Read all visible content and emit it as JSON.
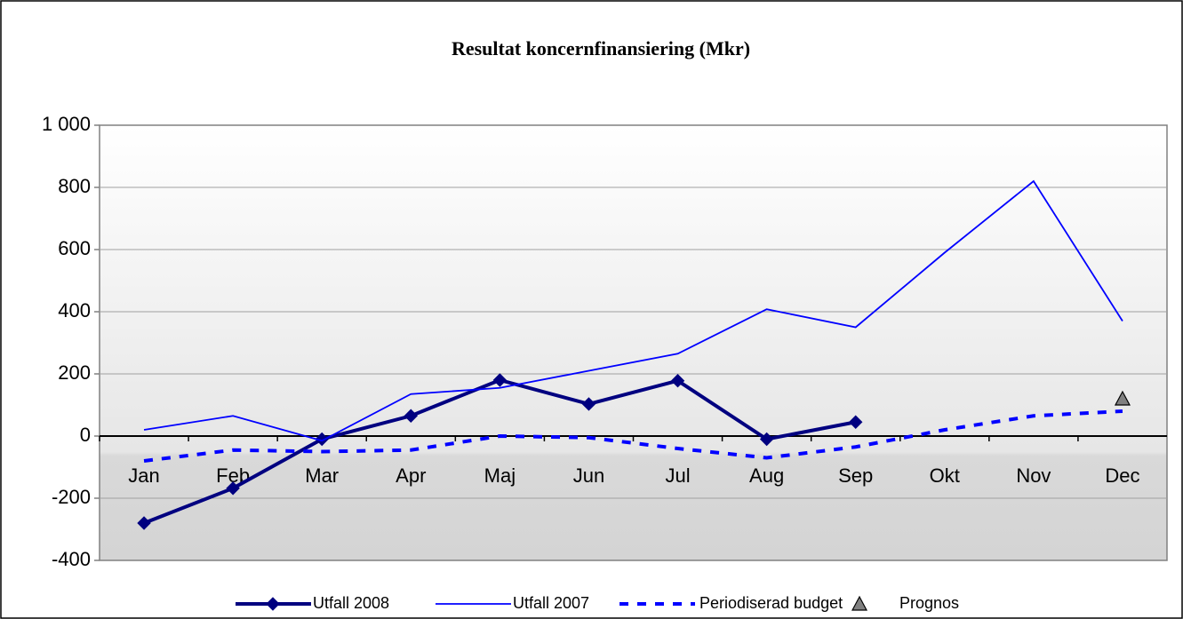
{
  "chart_data": {
    "type": "line",
    "title": "Resultat koncernfinansiering (Mkr)",
    "categories": [
      "Jan",
      "Feb",
      "Mar",
      "Apr",
      "Maj",
      "Jun",
      "Jul",
      "Aug",
      "Sep",
      "Okt",
      "Nov",
      "Dec"
    ],
    "series": [
      {
        "name": "Utfall 2008",
        "color": "#000080",
        "line": "thick",
        "marker": "diamond",
        "values": [
          -280,
          -168,
          -10,
          65,
          180,
          103,
          178,
          -10,
          45,
          null,
          null,
          null
        ]
      },
      {
        "name": "Utfall 2007",
        "color": "#0000ff",
        "line": "thin",
        "marker": "none",
        "values": [
          20,
          65,
          -15,
          135,
          155,
          210,
          265,
          408,
          350,
          590,
          820,
          370
        ]
      },
      {
        "name": "Periodiserad budget",
        "color": "#0000ff",
        "line": "dashed",
        "marker": "none",
        "values": [
          -80,
          -45,
          -50,
          -45,
          0,
          -5,
          -40,
          -70,
          -35,
          20,
          65,
          80
        ]
      },
      {
        "name": "Prognos",
        "color": "#808080",
        "line": "none",
        "marker": "triangle",
        "values": [
          null,
          null,
          null,
          null,
          null,
          null,
          null,
          null,
          null,
          null,
          null,
          120
        ]
      }
    ],
    "ylim": [
      -400,
      1000
    ],
    "yticks": [
      -400,
      -200,
      0,
      200,
      400,
      600,
      800,
      {
        "value": 1000,
        "label": "1 000"
      }
    ],
    "grid": true,
    "legend": "bottom"
  }
}
